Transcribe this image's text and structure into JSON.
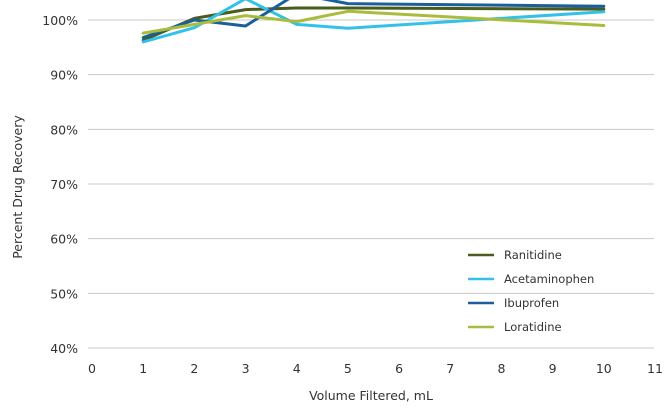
{
  "chart_data": {
    "type": "line",
    "title": "",
    "xlabel": "Volume Filtered, mL",
    "ylabel": "Percent Drug Recovery",
    "xlim": [
      0,
      11
    ],
    "ylim": [
      40,
      103
    ],
    "x_ticks": [
      "0",
      "1",
      "2",
      "3",
      "4",
      "5",
      "6",
      "7",
      "8",
      "9",
      "10",
      "11"
    ],
    "y_ticks": [
      {
        "value": 40,
        "label": "40%"
      },
      {
        "value": 50,
        "label": "50%"
      },
      {
        "value": 60,
        "label": "60%"
      },
      {
        "value": 70,
        "label": "70%"
      },
      {
        "value": 80,
        "label": "80%"
      },
      {
        "value": 90,
        "label": "90%"
      },
      {
        "value": 100,
        "label": "100%"
      }
    ],
    "grid": "horizontal",
    "legend_position": "bottom-right",
    "x": [
      1,
      2,
      3,
      4,
      5,
      10
    ],
    "series": [
      {
        "name": "Ranitidine",
        "color": "#4a5c1c",
        "values": [
          96.3,
          100.3,
          101.9,
          102.2,
          102.2,
          102.0
        ]
      },
      {
        "name": "Acetaminophen",
        "color": "#33c1ea",
        "values": [
          96.0,
          98.6,
          103.9,
          99.2,
          98.5,
          101.5
        ]
      },
      {
        "name": "Ibuprofen",
        "color": "#1c5d9c",
        "values": [
          96.8,
          100.0,
          98.9,
          104.8,
          103.0,
          102.5
        ]
      },
      {
        "name": "Loratidine",
        "color": "#a9bc3b",
        "values": [
          97.6,
          99.2,
          100.8,
          99.7,
          101.6,
          99.0
        ]
      }
    ]
  }
}
